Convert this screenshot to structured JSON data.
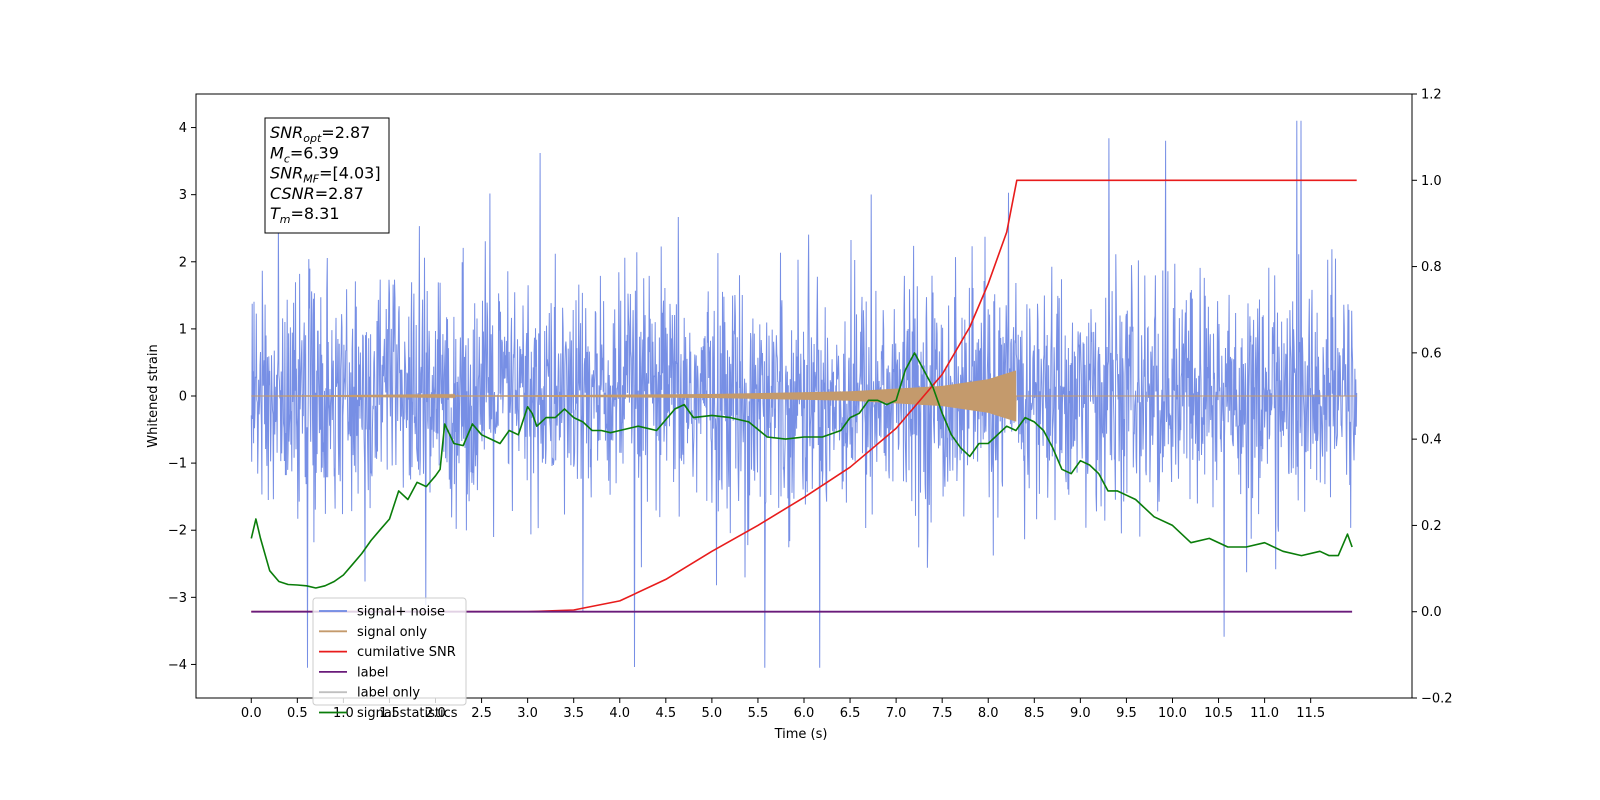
{
  "chart_data": {
    "type": "line",
    "xlabel": "Time (s)",
    "ylabel": "Whitened strain",
    "xlim": [
      -0.6,
      12.6
    ],
    "ylim": [
      -4.5,
      4.5
    ],
    "y2lim": [
      -0.2,
      1.2
    ],
    "grid": false,
    "legend_position": "lower-left",
    "x_ticks": [
      "0.0",
      "0.5",
      "1.0",
      "1.5",
      "2.0",
      "2.5",
      "3.0",
      "3.5",
      "4.0",
      "4.5",
      "5.0",
      "5.5",
      "6.0",
      "6.5",
      "7.0",
      "7.5",
      "8.0",
      "8.5",
      "9.0",
      "9.5",
      "10.0",
      "10.5",
      "11.0",
      "11.5"
    ],
    "y_ticks": [
      "4",
      "3",
      "2",
      "1",
      "0",
      "−1",
      "−2",
      "−3",
      "−4"
    ],
    "y2_ticks": [
      "1.2",
      "1.0",
      "0.8",
      "0.6",
      "0.4",
      "0.2",
      "0.0",
      "−0.2"
    ],
    "annotation": [
      {
        "var": "SNR",
        "sub": "opt",
        "value": "=2.87"
      },
      {
        "var": "M",
        "sub": "c",
        "value": "=6.39"
      },
      {
        "var": "SNR",
        "sub": "MF",
        "value": "=[4.03]"
      },
      {
        "var": "CSNR",
        "sub": "",
        "value": "=2.87"
      },
      {
        "var": "T",
        "sub": "m",
        "value": "=8.31"
      }
    ],
    "series": [
      {
        "name": "signal+ noise",
        "color": "#6b86e3",
        "axis": "left",
        "time_range": [
          0.0,
          12.0
        ],
        "amplitude_typical": [
          -1.8,
          1.8
        ],
        "amplitude_extremes": [
          -4.05,
          4.1
        ]
      },
      {
        "name": "signal only",
        "color": "#c49a6c",
        "axis": "left",
        "time_range": [
          0.0,
          8.31
        ],
        "envelope": {
          "x": [
            0.0,
            3.0,
            5.0,
            6.5,
            7.5,
            8.0,
            8.3
          ],
          "y": [
            0.0,
            0.01,
            0.03,
            0.07,
            0.15,
            0.25,
            0.38
          ]
        }
      },
      {
        "name": "cumilative SNR",
        "color": "#e81c1c",
        "axis": "right",
        "x": [
          0.0,
          3.0,
          3.5,
          4.0,
          4.5,
          5.0,
          5.5,
          6.0,
          6.5,
          7.0,
          7.5,
          7.8,
          8.0,
          8.2,
          8.31,
          12.0
        ],
        "y": [
          0.0,
          0.0,
          0.004,
          0.025,
          0.075,
          0.14,
          0.2,
          0.265,
          0.335,
          0.425,
          0.55,
          0.66,
          0.76,
          0.88,
          1.0,
          1.0
        ]
      },
      {
        "name": "label",
        "color": "#6a1b7a",
        "axis": "right",
        "x": [
          0.0,
          11.95
        ],
        "y": [
          0.0,
          0.0
        ]
      },
      {
        "name": "label only",
        "color": "#c0c0c0",
        "axis": "right",
        "x": [],
        "y": []
      },
      {
        "name": "signal statistics",
        "color": "#0a7d0a",
        "axis": "right",
        "x": [
          0.0,
          0.05,
          0.1,
          0.2,
          0.3,
          0.4,
          0.5,
          0.6,
          0.7,
          0.8,
          0.9,
          1.0,
          1.1,
          1.2,
          1.3,
          1.4,
          1.5,
          1.6,
          1.7,
          1.8,
          1.9,
          2.0,
          2.05,
          2.1,
          2.2,
          2.3,
          2.4,
          2.5,
          2.6,
          2.7,
          2.8,
          2.9,
          3.0,
          3.05,
          3.1,
          3.2,
          3.3,
          3.4,
          3.5,
          3.6,
          3.7,
          3.8,
          3.9,
          4.0,
          4.2,
          4.4,
          4.6,
          4.7,
          4.8,
          5.0,
          5.2,
          5.4,
          5.6,
          5.8,
          6.0,
          6.2,
          6.4,
          6.5,
          6.6,
          6.7,
          6.8,
          6.9,
          7.0,
          7.1,
          7.2,
          7.3,
          7.4,
          7.5,
          7.6,
          7.7,
          7.8,
          7.9,
          8.0,
          8.1,
          8.2,
          8.3,
          8.4,
          8.5,
          8.6,
          8.7,
          8.8,
          8.9,
          9.0,
          9.1,
          9.2,
          9.3,
          9.4,
          9.5,
          9.6,
          9.8,
          10.0,
          10.2,
          10.4,
          10.6,
          10.8,
          11.0,
          11.2,
          11.4,
          11.6,
          11.7,
          11.8,
          11.9,
          11.95
        ],
        "y": [
          0.17,
          0.215,
          0.17,
          0.095,
          0.07,
          0.063,
          0.062,
          0.06,
          0.055,
          0.06,
          0.07,
          0.085,
          0.11,
          0.135,
          0.165,
          0.19,
          0.215,
          0.28,
          0.26,
          0.3,
          0.29,
          0.315,
          0.33,
          0.435,
          0.39,
          0.385,
          0.435,
          0.41,
          0.4,
          0.39,
          0.42,
          0.41,
          0.475,
          0.46,
          0.43,
          0.45,
          0.45,
          0.47,
          0.45,
          0.44,
          0.42,
          0.42,
          0.415,
          0.42,
          0.43,
          0.42,
          0.47,
          0.48,
          0.45,
          0.455,
          0.45,
          0.44,
          0.405,
          0.4,
          0.405,
          0.405,
          0.42,
          0.45,
          0.46,
          0.49,
          0.49,
          0.48,
          0.49,
          0.56,
          0.6,
          0.56,
          0.52,
          0.46,
          0.41,
          0.38,
          0.36,
          0.39,
          0.39,
          0.41,
          0.43,
          0.42,
          0.45,
          0.44,
          0.42,
          0.38,
          0.33,
          0.32,
          0.35,
          0.34,
          0.32,
          0.28,
          0.28,
          0.27,
          0.26,
          0.22,
          0.2,
          0.16,
          0.17,
          0.15,
          0.15,
          0.16,
          0.14,
          0.13,
          0.14,
          0.13,
          0.13,
          0.18,
          0.15
        ]
      }
    ]
  }
}
